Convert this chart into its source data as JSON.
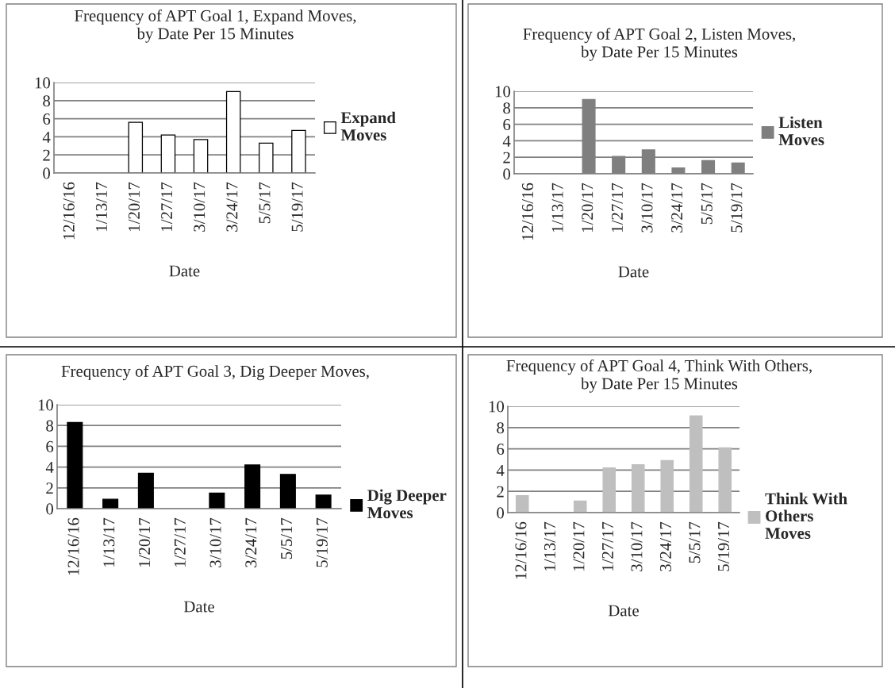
{
  "chart_data": [
    {
      "type": "bar",
      "title": "Frequency of APT Goal 1, Expand Moves,\nby Date Per 15 Minutes",
      "xlabel": "Date",
      "categories": [
        "12/16/16",
        "1/13/17",
        "1/20/17",
        "1/27/17",
        "3/10/17",
        "3/24/17",
        "5/5/17",
        "5/19/17"
      ],
      "series": [
        {
          "name": "Expand Moves",
          "color": "#ffffff",
          "values": [
            0,
            0,
            5.6,
            4.2,
            3.7,
            9.0,
            3.3,
            4.7
          ]
        }
      ],
      "ylim": [
        0,
        10
      ],
      "yticks": [
        0,
        2,
        4,
        6,
        8,
        10
      ],
      "grid": "y",
      "legend": "right"
    },
    {
      "type": "bar",
      "title": "Frequency of APT Goal 2, Listen Moves,\nby Date Per 15 Minutes",
      "xlabel": "Date",
      "categories": [
        "12/16/16",
        "1/13/17",
        "1/20/17",
        "1/27/17",
        "3/10/17",
        "3/24/17",
        "5/5/17",
        "5/19/17"
      ],
      "series": [
        {
          "name": "Listen Moves",
          "color": "#7f7f7f",
          "values": [
            0,
            0,
            9.0,
            2.1,
            2.9,
            0.7,
            1.6,
            1.3
          ]
        }
      ],
      "ylim": [
        0,
        10
      ],
      "yticks": [
        0,
        2,
        4,
        6,
        8,
        10
      ],
      "grid": "y",
      "legend": "right"
    },
    {
      "type": "bar",
      "title": "Frequency of APT Goal 3, Dig Deeper Moves,",
      "xlabel": "Date",
      "categories": [
        "12/16/16",
        "1/13/17",
        "1/20/17",
        "1/27/17",
        "3/10/17",
        "3/24/17",
        "5/5/17",
        "5/19/17"
      ],
      "series": [
        {
          "name": "Dig Deeper Moves",
          "color": "#000000",
          "values": [
            8.3,
            0.9,
            3.4,
            0,
            1.5,
            4.2,
            3.3,
            1.3
          ]
        }
      ],
      "ylim": [
        0,
        10
      ],
      "yticks": [
        0,
        2,
        4,
        6,
        8,
        10
      ],
      "grid": "y",
      "legend": "bottom right"
    },
    {
      "type": "bar",
      "title": "Frequency of APT Goal 4, Think With Others,\nby Date Per 15 Minutes",
      "xlabel": "Date",
      "categories": [
        "12/16/16",
        "1/13/17",
        "1/20/17",
        "1/27/17",
        "3/10/17",
        "3/24/17",
        "5/5/17",
        "5/19/17"
      ],
      "series": [
        {
          "name": "Think With Others Moves",
          "color": "#bfbfbf",
          "values": [
            1.6,
            0,
            1.1,
            4.2,
            4.5,
            4.9,
            9.1,
            6.1
          ]
        }
      ],
      "ylim": [
        0,
        10
      ],
      "yticks": [
        0,
        2,
        4,
        6,
        8,
        10
      ],
      "grid": "y",
      "legend": "bottom right"
    }
  ]
}
